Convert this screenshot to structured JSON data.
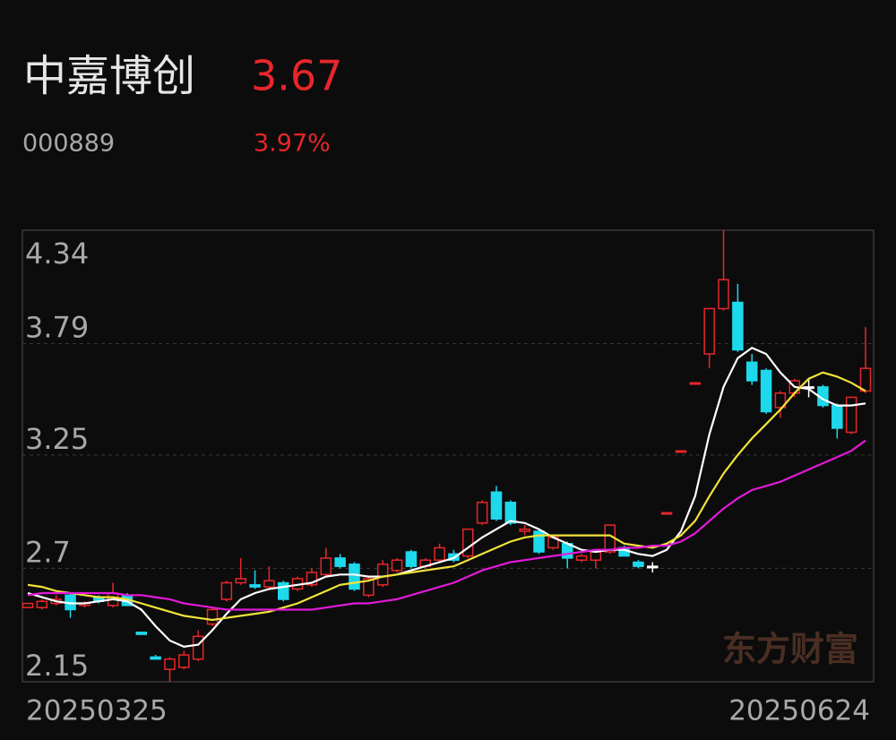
{
  "header": {
    "name": "中嘉博创",
    "price": "3.67",
    "code": "000889",
    "change": "3.97%"
  },
  "watermark": "东方财富",
  "chart_data": {
    "type": "candlestick",
    "categories": [
      "20250325",
      null,
      null,
      null,
      null,
      null,
      null,
      null,
      null,
      null,
      null,
      null,
      null,
      null,
      null,
      null,
      null,
      null,
      null,
      null,
      null,
      null,
      null,
      null,
      null,
      null,
      null,
      null,
      null,
      null,
      null,
      null,
      null,
      null,
      null,
      null,
      null,
      null,
      null,
      null,
      null,
      null,
      null,
      null,
      null,
      null,
      null,
      null,
      null,
      null,
      null,
      null,
      null,
      null,
      null,
      null,
      null,
      null,
      null,
      "20250624"
    ],
    "open": [
      2.51,
      2.51,
      2.53,
      2.57,
      2.52,
      2.56,
      2.52,
      2.57,
      2.39,
      2.27,
      2.21,
      2.22,
      2.26,
      2.43,
      2.55,
      2.63,
      2.62,
      2.61,
      2.63,
      2.6,
      2.62,
      2.67,
      2.75,
      2.72,
      2.57,
      2.62,
      2.69,
      2.78,
      2.71,
      2.74,
      2.77,
      2.76,
      2.92,
      3.07,
      3.02,
      2.88,
      2.88,
      2.8,
      2.82,
      2.74,
      2.74,
      2.78,
      2.8,
      2.73,
      2.71,
      2.97,
      3.27,
      3.6,
      3.74,
      3.96,
      3.99,
      3.7,
      3.66,
      3.48,
      3.55,
      3.58,
      3.58,
      3.49,
      3.36,
      3.56
    ],
    "high": [
      2.53,
      2.55,
      2.57,
      2.58,
      2.54,
      2.57,
      2.63,
      2.58,
      2.39,
      2.28,
      2.27,
      2.3,
      2.4,
      2.51,
      2.64,
      2.75,
      2.69,
      2.71,
      2.64,
      2.66,
      2.7,
      2.8,
      2.77,
      2.73,
      2.66,
      2.74,
      2.75,
      2.79,
      2.75,
      2.82,
      2.79,
      2.89,
      3.03,
      3.1,
      3.03,
      2.91,
      2.89,
      2.86,
      2.83,
      2.77,
      2.78,
      2.91,
      2.81,
      2.74,
      2.73,
      2.97,
      3.27,
      3.6,
      3.96,
      4.34,
      4.08,
      3.74,
      3.67,
      3.56,
      3.62,
      3.62,
      3.59,
      3.5,
      3.53,
      3.87
    ],
    "low": [
      2.51,
      2.5,
      2.52,
      2.46,
      2.51,
      2.53,
      2.51,
      2.52,
      2.38,
      2.26,
      2.15,
      2.21,
      2.25,
      2.42,
      2.54,
      2.62,
      2.6,
      2.6,
      2.54,
      2.59,
      2.61,
      2.66,
      2.7,
      2.59,
      2.56,
      2.61,
      2.68,
      2.7,
      2.7,
      2.73,
      2.73,
      2.75,
      2.91,
      2.93,
      2.91,
      2.86,
      2.77,
      2.79,
      2.7,
      2.73,
      2.7,
      2.77,
      2.76,
      2.7,
      2.68,
      2.97,
      3.27,
      3.6,
      3.67,
      3.95,
      3.75,
      3.59,
      3.45,
      3.43,
      3.53,
      3.53,
      3.48,
      3.33,
      3.35,
      3.55
    ],
    "close": [
      2.53,
      2.54,
      2.55,
      2.5,
      2.53,
      2.54,
      2.58,
      2.52,
      2.38,
      2.26,
      2.26,
      2.28,
      2.37,
      2.5,
      2.63,
      2.65,
      2.61,
      2.64,
      2.55,
      2.65,
      2.68,
      2.75,
      2.71,
      2.6,
      2.65,
      2.72,
      2.74,
      2.71,
      2.74,
      2.8,
      2.74,
      2.89,
      3.02,
      2.94,
      2.92,
      2.89,
      2.78,
      2.85,
      2.75,
      2.76,
      2.78,
      2.91,
      2.76,
      2.71,
      2.71,
      2.97,
      3.27,
      3.6,
      3.96,
      4.1,
      3.76,
      3.61,
      3.46,
      3.55,
      3.61,
      3.58,
      3.49,
      3.38,
      3.53,
      3.67
    ],
    "colors": [
      "#e8262a",
      "#e8262a",
      "#e8262a",
      "#1ed8ec",
      "#e8262a",
      "#1ed8ec",
      "#e8262a",
      "#1ed8ec",
      "#1ed8ec",
      "#1ed8ec",
      "#e8262a",
      "#e8262a",
      "#e8262a",
      "#e8262a",
      "#e8262a",
      "#e8262a",
      "#1ed8ec",
      "#e8262a",
      "#1ed8ec",
      "#e8262a",
      "#e8262a",
      "#e8262a",
      "#1ed8ec",
      "#1ed8ec",
      "#e8262a",
      "#e8262a",
      "#e8262a",
      "#1ed8ec",
      "#e8262a",
      "#e8262a",
      "#1ed8ec",
      "#e8262a",
      "#e8262a",
      "#1ed8ec",
      "#1ed8ec",
      "#e8262a",
      "#1ed8ec",
      "#e8262a",
      "#1ed8ec",
      "#e8262a",
      "#e8262a",
      "#e8262a",
      "#1ed8ec",
      "#1ed8ec",
      "#ffffff",
      "#e8262a",
      "#e8262a",
      "#e8262a",
      "#e8262a",
      "#e8262a",
      "#1ed8ec",
      "#1ed8ec",
      "#1ed8ec",
      "#e8262a",
      "#e8262a",
      "#ffffff",
      "#1ed8ec",
      "#1ed8ec",
      "#e8262a",
      "#e8262a"
    ],
    "series": [
      {
        "color": "#ffffff",
        "values": [
          2.58,
          2.56,
          2.54,
          2.53,
          2.53,
          2.54,
          2.55,
          2.54,
          2.5,
          2.42,
          2.35,
          2.32,
          2.33,
          2.4,
          2.48,
          2.55,
          2.58,
          2.6,
          2.61,
          2.62,
          2.63,
          2.66,
          2.67,
          2.67,
          2.66,
          2.66,
          2.67,
          2.69,
          2.71,
          2.73,
          2.75,
          2.8,
          2.85,
          2.89,
          2.93,
          2.92,
          2.89,
          2.85,
          2.82,
          2.79,
          2.78,
          2.79,
          2.79,
          2.77,
          2.76,
          2.79,
          2.88,
          3.05,
          3.35,
          3.58,
          3.72,
          3.77,
          3.74,
          3.65,
          3.58,
          3.57,
          3.52,
          3.49,
          3.49,
          3.5
        ]
      },
      {
        "color": "#f2e43a",
        "values": [
          2.62,
          2.61,
          2.59,
          2.58,
          2.57,
          2.56,
          2.56,
          2.55,
          2.53,
          2.51,
          2.49,
          2.47,
          2.46,
          2.45,
          2.46,
          2.47,
          2.48,
          2.49,
          2.51,
          2.53,
          2.56,
          2.59,
          2.62,
          2.63,
          2.64,
          2.66,
          2.67,
          2.68,
          2.69,
          2.7,
          2.71,
          2.74,
          2.77,
          2.8,
          2.83,
          2.85,
          2.86,
          2.86,
          2.86,
          2.86,
          2.86,
          2.86,
          2.82,
          2.81,
          2.8,
          2.82,
          2.86,
          2.93,
          3.05,
          3.16,
          3.25,
          3.33,
          3.4,
          3.47,
          3.55,
          3.62,
          3.65,
          3.63,
          3.6,
          3.56
        ]
      },
      {
        "color": "#e21ad8",
        "values": [
          2.57,
          2.58,
          2.58,
          2.58,
          2.58,
          2.58,
          2.58,
          2.57,
          2.57,
          2.56,
          2.55,
          2.53,
          2.52,
          2.51,
          2.5,
          2.5,
          2.5,
          2.5,
          2.5,
          2.5,
          2.5,
          2.51,
          2.52,
          2.53,
          2.53,
          2.54,
          2.55,
          2.57,
          2.59,
          2.61,
          2.63,
          2.66,
          2.69,
          2.71,
          2.73,
          2.74,
          2.75,
          2.76,
          2.77,
          2.78,
          2.79,
          2.79,
          2.8,
          2.8,
          2.81,
          2.81,
          2.83,
          2.87,
          2.93,
          2.99,
          3.04,
          3.08,
          3.1,
          3.12,
          3.15,
          3.18,
          3.21,
          3.24,
          3.27,
          3.32
        ]
      }
    ],
    "ylim": [
      2.15,
      4.34
    ],
    "yticks": [
      4.34,
      3.79,
      3.25,
      2.7,
      2.15
    ],
    "grid": true
  }
}
